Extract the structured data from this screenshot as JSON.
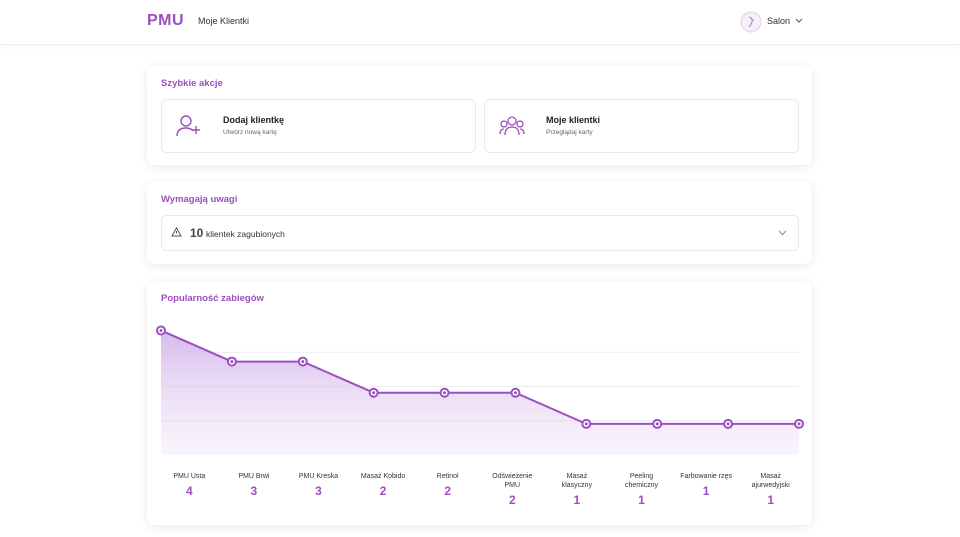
{
  "header": {
    "logo": "PMU",
    "nav": "Moje Klientki",
    "user": "Salon"
  },
  "quick_actions": {
    "title": "Szybkie akcje",
    "items": [
      {
        "title": "Dodaj klientkę",
        "subtitle": "Utwórz nową kartę"
      },
      {
        "title": "Moje klientki",
        "subtitle": "Przeglądaj karty"
      }
    ]
  },
  "attention": {
    "title": "Wymagają uwagi",
    "count": 10,
    "label": "klientek zagubionych"
  },
  "chart_data": {
    "type": "area",
    "title": "Popularność zabiegów",
    "categories": [
      "PMU Usta",
      "PMU Brwi",
      "PMU Kreska",
      "Masaż Kobido",
      "Retinol",
      "Odświeżenie PMU",
      "Masaż klasyczny",
      "Peeling chemiczny",
      "Farbowanie rzęs",
      "Masaż ajurwedyjski"
    ],
    "values": [
      4,
      3,
      3,
      2,
      2,
      2,
      1,
      1,
      1,
      1
    ],
    "color": "#9b4fc0",
    "ylim": [
      0,
      4.4
    ],
    "yticks": [
      1.1,
      2.2,
      3.3
    ],
    "grid": true
  }
}
